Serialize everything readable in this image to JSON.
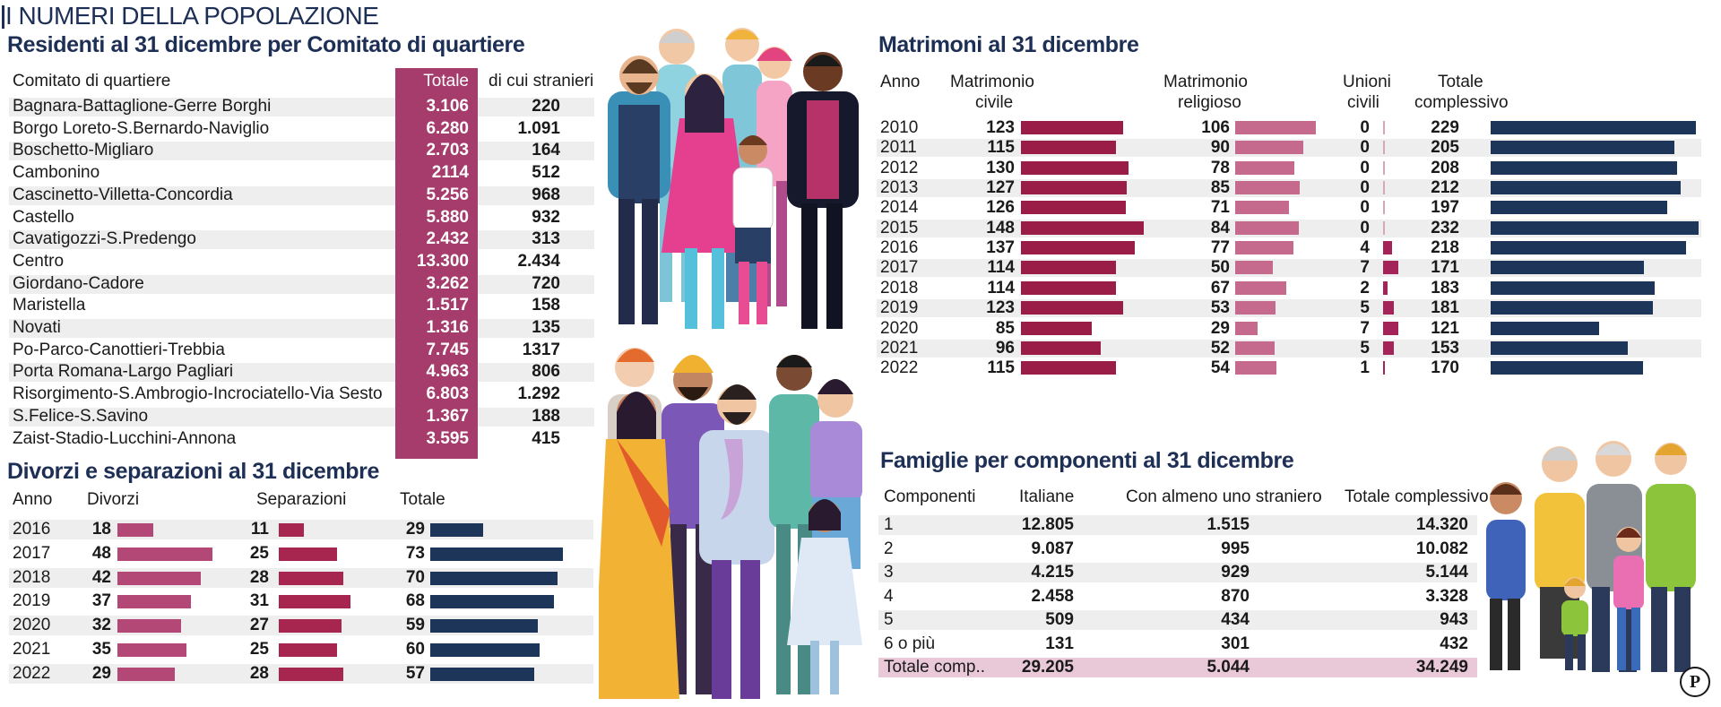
{
  "title": "I NUMERI DELLA POPOLAZIONE",
  "residenti": {
    "title": "Residenti al 31 dicembre per Comitato di quartiere",
    "headers": {
      "name": "Comitato di quartiere",
      "total": "Totale",
      "foreign": "di cui stranieri"
    },
    "rows": [
      {
        "name": "Bagnara-Battaglione-Gerre Borghi",
        "total": "3.106",
        "foreign": "220"
      },
      {
        "name": "Borgo Loreto-S.Bernardo-Naviglio",
        "total": "6.280",
        "foreign": "1.091"
      },
      {
        "name": "Boschetto-Migliaro",
        "total": "2.703",
        "foreign": "164"
      },
      {
        "name": "Cambonino",
        "total": "2114",
        "foreign": "512"
      },
      {
        "name": "Cascinetto-Villetta-Concordia",
        "total": "5.256",
        "foreign": "968"
      },
      {
        "name": "Castello",
        "total": "5.880",
        "foreign": "932"
      },
      {
        "name": "Cavatigozzi-S.Predengo",
        "total": "2.432",
        "foreign": "313"
      },
      {
        "name": "Centro",
        "total": "13.300",
        "foreign": "2.434"
      },
      {
        "name": "Giordano-Cadore",
        "total": "3.262",
        "foreign": "720"
      },
      {
        "name": "Maristella",
        "total": "1.517",
        "foreign": "158"
      },
      {
        "name": "Novati",
        "total": "1.316",
        "foreign": "135"
      },
      {
        "name": "Po-Parco-Canottieri-Trebbia",
        "total": "7.745",
        "foreign": "1317"
      },
      {
        "name": "Porta Romana-Largo Pagliari",
        "total": "4.963",
        "foreign": "806"
      },
      {
        "name": "Risorgimento-S.Ambrogio-Incrociatello-Via Sesto",
        "total": "6.803",
        "foreign": "1.292"
      },
      {
        "name": "S.Felice-S.Savino",
        "total": "1.367",
        "foreign": "188"
      },
      {
        "name": "Zaist-Stadio-Lucchini-Annona",
        "total": "3.595",
        "foreign": "415"
      }
    ]
  },
  "divorzi": {
    "title": "Divorzi e separazioni al 31 dicembre",
    "headers": {
      "year": "Anno",
      "div": "Divorzi",
      "sep": "Separazioni",
      "tot": "Totale"
    },
    "rows": [
      {
        "year": "2016",
        "div": 18,
        "sep": 11,
        "tot": 29
      },
      {
        "year": "2017",
        "div": 48,
        "sep": 25,
        "tot": 73
      },
      {
        "year": "2018",
        "div": 42,
        "sep": 28,
        "tot": 70
      },
      {
        "year": "2019",
        "div": 37,
        "sep": 31,
        "tot": 68
      },
      {
        "year": "2020",
        "div": 32,
        "sep": 27,
        "tot": 59
      },
      {
        "year": "2021",
        "div": 35,
        "sep": 25,
        "tot": 60
      },
      {
        "year": "2022",
        "div": 29,
        "sep": 28,
        "tot": 57
      }
    ]
  },
  "matrimoni": {
    "title": "Matrimoni al 31 dicembre",
    "headers": {
      "year": "Anno",
      "civ1": "Matrimonio",
      "civ2": "civile",
      "rel1": "Matrimonio",
      "rel2": "religioso",
      "uni1": "Unioni",
      "uni2": "civili",
      "tot1": "Totale",
      "tot2": "complessivo"
    },
    "rows": [
      {
        "year": "2010",
        "civ": 123,
        "rel": 106,
        "uni": 0,
        "tot": 229
      },
      {
        "year": "2011",
        "civ": 115,
        "rel": 90,
        "uni": 0,
        "tot": 205
      },
      {
        "year": "2012",
        "civ": 130,
        "rel": 78,
        "uni": 0,
        "tot": 208
      },
      {
        "year": "2013",
        "civ": 127,
        "rel": 85,
        "uni": 0,
        "tot": 212
      },
      {
        "year": "2014",
        "civ": 126,
        "rel": 71,
        "uni": 0,
        "tot": 197
      },
      {
        "year": "2015",
        "civ": 148,
        "rel": 84,
        "uni": 0,
        "tot": 232
      },
      {
        "year": "2016",
        "civ": 137,
        "rel": 77,
        "uni": 4,
        "tot": 218
      },
      {
        "year": "2017",
        "civ": 114,
        "rel": 50,
        "uni": 7,
        "tot": 171
      },
      {
        "year": "2018",
        "civ": 114,
        "rel": 67,
        "uni": 2,
        "tot": 183
      },
      {
        "year": "2019",
        "civ": 123,
        "rel": 53,
        "uni": 5,
        "tot": 181
      },
      {
        "year": "2020",
        "civ": 85,
        "rel": 29,
        "uni": 7,
        "tot": 121
      },
      {
        "year": "2021",
        "civ": 96,
        "rel": 52,
        "uni": 5,
        "tot": 153
      },
      {
        "year": "2022",
        "civ": 115,
        "rel": 54,
        "uni": 1,
        "tot": 170
      }
    ]
  },
  "famiglie": {
    "title": "Famiglie per componenti al 31 dicembre",
    "headers": {
      "comp": "Componenti",
      "ita": "Italiane",
      "str": "Con almeno uno straniero",
      "tot": "Totale complessivo"
    },
    "rows": [
      {
        "comp": "1",
        "ita": "12.805",
        "str": "1.515",
        "tot": "14.320"
      },
      {
        "comp": "2",
        "ita": "9.087",
        "str": "995",
        "tot": "10.082"
      },
      {
        "comp": "3",
        "ita": "4.215",
        "str": "929",
        "tot": "5.144"
      },
      {
        "comp": "4",
        "ita": "2.458",
        "str": "870",
        "tot": "3.328"
      },
      {
        "comp": "5",
        "ita": "509",
        "str": "434",
        "tot": "943"
      },
      {
        "comp": "6 o più",
        "ita": "131",
        "str": "301",
        "tot": "432"
      }
    ],
    "total_row": {
      "comp": "Totale comp..",
      "ita": "29.205",
      "str": "5.044",
      "tot": "34.249"
    }
  },
  "logo_letter": "P",
  "colors": {
    "navy": "#1d3558",
    "wine": "#9a1d48",
    "pink": "#c56a8c",
    "plum": "#a53c6b",
    "stripe": "#eeeeee"
  },
  "chart_data": [
    {
      "type": "table",
      "title": "Residenti al 31 dicembre per Comitato di quartiere",
      "columns": [
        "Comitato di quartiere",
        "Totale",
        "di cui stranieri"
      ]
    },
    {
      "type": "bar",
      "title": "Divorzi e separazioni al 31 dicembre",
      "categories": [
        "2016",
        "2017",
        "2018",
        "2019",
        "2020",
        "2021",
        "2022"
      ],
      "series": [
        {
          "name": "Divorzi",
          "values": [
            18,
            48,
            42,
            37,
            32,
            35,
            29
          ]
        },
        {
          "name": "Separazioni",
          "values": [
            11,
            25,
            28,
            31,
            27,
            25,
            28
          ]
        },
        {
          "name": "Totale",
          "values": [
            29,
            73,
            70,
            68,
            59,
            60,
            57
          ]
        }
      ]
    },
    {
      "type": "bar",
      "title": "Matrimoni al 31 dicembre",
      "categories": [
        "2010",
        "2011",
        "2012",
        "2013",
        "2014",
        "2015",
        "2016",
        "2017",
        "2018",
        "2019",
        "2020",
        "2021",
        "2022"
      ],
      "series": [
        {
          "name": "Matrimonio civile",
          "values": [
            123,
            115,
            130,
            127,
            126,
            148,
            137,
            114,
            114,
            123,
            85,
            96,
            115
          ]
        },
        {
          "name": "Matrimonio religioso",
          "values": [
            106,
            90,
            78,
            85,
            71,
            84,
            77,
            50,
            67,
            53,
            29,
            52,
            54
          ]
        },
        {
          "name": "Unioni civili",
          "values": [
            0,
            0,
            0,
            0,
            0,
            0,
            4,
            7,
            2,
            5,
            7,
            5,
            1
          ]
        },
        {
          "name": "Totale complessivo",
          "values": [
            229,
            205,
            208,
            212,
            197,
            232,
            218,
            171,
            183,
            181,
            121,
            153,
            170
          ]
        }
      ]
    },
    {
      "type": "table",
      "title": "Famiglie per componenti al 31 dicembre",
      "columns": [
        "Componenti",
        "Italiane",
        "Con almeno uno straniero",
        "Totale complessivo"
      ]
    }
  ]
}
